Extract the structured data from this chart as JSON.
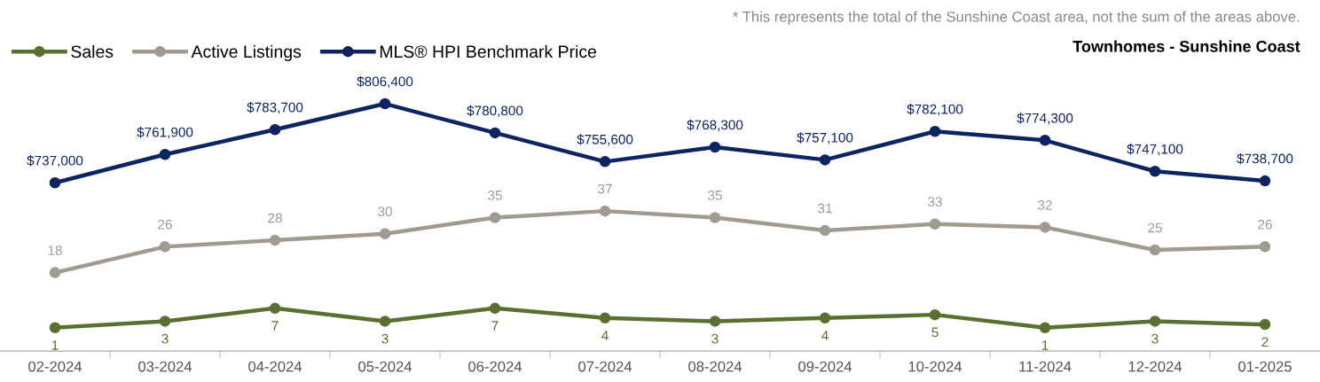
{
  "chart_data": [
    {
      "type": "line",
      "title": "Townhomes - Sunshine Coast",
      "annotations": [
        "* This represents the total of the Sunshine Coast area, not the sum of the areas above."
      ],
      "categories": [
        null,
        null,
        null,
        null,
        null,
        null,
        null,
        null,
        null,
        null,
        null,
        null
      ],
      "series": [
        {
          "name": "MLS® HPI Benchmark Price",
          "color": "#0c2461",
          "values": [
            737000,
            761900,
            783700,
            806400,
            780800,
            755600,
            768300,
            757100,
            782100,
            774300,
            747100,
            738700
          ],
          "value_labels": [
            "$737,000",
            "$761,900",
            "$783,700",
            "$806,400",
            "$780,800",
            "$755,600",
            "$768,300",
            "$757,100",
            "$782,100",
            "$774,300",
            "$747,100",
            "$738,700"
          ]
        }
      ],
      "tick_labels": false,
      "legend": "top left",
      "marker": "circle",
      "line_style": "solid"
    },
    {
      "type": "line",
      "categories": [
        "02-2024",
        "03-2024",
        "04-2024",
        "05-2024",
        "06-2024",
        "07-2024",
        "08-2024",
        "09-2024",
        "10-2024",
        "11-2024",
        "12-2024",
        "01-2025"
      ],
      "series": [
        {
          "name": "Sales",
          "color": "#5a7030",
          "values": [
            1,
            3,
            7,
            3,
            7,
            4,
            3,
            4,
            5,
            1,
            3,
            2
          ]
        },
        {
          "name": "Active Listings",
          "color": "#a19a91",
          "values": [
            18,
            26,
            28,
            30,
            35,
            37,
            35,
            31,
            33,
            32,
            25,
            26
          ]
        }
      ],
      "tick_labels": "x",
      "data_labels": true,
      "legend": "top left",
      "marker": "circle",
      "line_style": "solid"
    }
  ]
}
